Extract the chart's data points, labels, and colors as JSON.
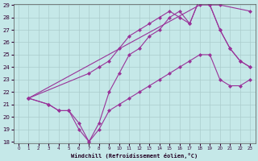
{
  "xlabel": "Windchill (Refroidissement éolien,°C)",
  "xlim": [
    -0.5,
    23.5
  ],
  "ylim": [
    18,
    29
  ],
  "yticks": [
    18,
    19,
    20,
    21,
    22,
    23,
    24,
    25,
    26,
    27,
    28,
    29
  ],
  "xticks": [
    0,
    1,
    2,
    3,
    4,
    5,
    6,
    7,
    8,
    9,
    10,
    11,
    12,
    13,
    14,
    15,
    16,
    17,
    18,
    19,
    20,
    21,
    22,
    23
  ],
  "bg_color": "#c5e8e8",
  "line_color": "#993399",
  "grid_color": "#aacccc",
  "lines": [
    {
      "comment": "upper straight line: x=1 y=21.5 going to x=18 y=29, x=20 y=29, x=23 y=28.5",
      "x": [
        1,
        18,
        20,
        23
      ],
      "y": [
        21.5,
        29.0,
        29.0,
        28.5
      ]
    },
    {
      "x": [
        1,
        7,
        8,
        9,
        10,
        11,
        12,
        13,
        14,
        15,
        16,
        17,
        18,
        19,
        20,
        21,
        22,
        23
      ],
      "y": [
        21.5,
        23.5,
        24.0,
        24.5,
        25.5,
        26.5,
        27.0,
        27.5,
        28.0,
        28.5,
        28.0,
        27.5,
        29.5,
        29.0,
        27.0,
        25.5,
        24.5,
        24.0
      ]
    },
    {
      "comment": "line dipping low then rising: x=1 y=21.5, goes to 3=21, 4=20.5, 5=20.5, 6=19.5, 7=18.0, then up",
      "x": [
        1,
        3,
        4,
        5,
        6,
        7,
        8,
        9,
        10,
        11,
        12,
        13,
        14,
        15,
        16,
        17,
        18,
        19,
        20,
        21,
        22,
        23
      ],
      "y": [
        21.5,
        21.0,
        20.5,
        20.5,
        19.5,
        18.0,
        19.5,
        22.0,
        23.5,
        25.0,
        25.5,
        26.5,
        27.0,
        28.0,
        28.5,
        27.5,
        29.5,
        29.0,
        27.0,
        25.5,
        24.5,
        24.0
      ]
    },
    {
      "x": [
        1,
        3,
        4,
        5,
        6,
        7,
        8,
        9,
        10,
        11,
        12,
        13,
        14,
        15,
        16,
        17,
        18,
        19,
        20,
        21,
        22,
        23
      ],
      "y": [
        21.5,
        21.0,
        20.5,
        20.5,
        19.0,
        18.0,
        19.0,
        20.5,
        21.0,
        21.5,
        22.0,
        22.5,
        23.0,
        23.5,
        24.0,
        24.5,
        25.0,
        25.0,
        23.0,
        22.5,
        22.5,
        23.0
      ]
    }
  ],
  "marker": "D",
  "markersize": 2.0,
  "linewidth": 0.8
}
